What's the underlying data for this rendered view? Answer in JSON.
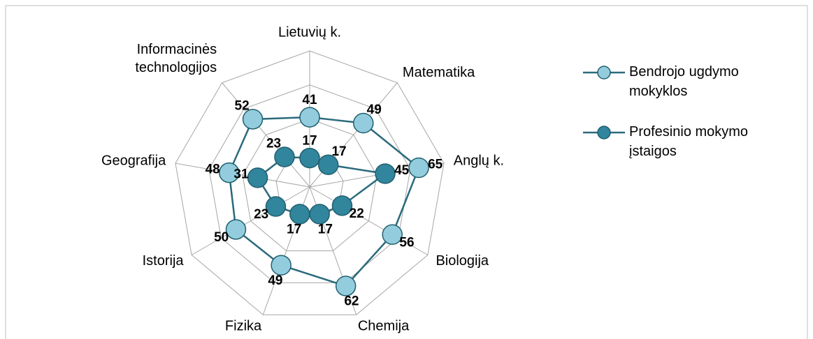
{
  "chart_data": {
    "type": "radar",
    "categories": [
      "Lietuvių k.",
      "Matematika",
      "Anglų k.",
      "Biologija",
      "Chemija",
      "Fizika",
      "Istorija",
      "Geografija",
      "Informacinės technologijos"
    ],
    "series": [
      {
        "name": "Bendrojo ugdymo mokyklos",
        "color": "#93cddd",
        "values": [
          41,
          49,
          65,
          56,
          62,
          49,
          50,
          48,
          52
        ]
      },
      {
        "name": "Profesinio mokymo įstaigos",
        "color": "#31859c",
        "values": [
          17,
          17,
          45,
          22,
          17,
          17,
          23,
          31,
          23
        ]
      }
    ],
    "ylim": [
      0,
      80
    ],
    "yticks": [
      0,
      20,
      40,
      60,
      80
    ],
    "grid": true,
    "legend": "right"
  }
}
